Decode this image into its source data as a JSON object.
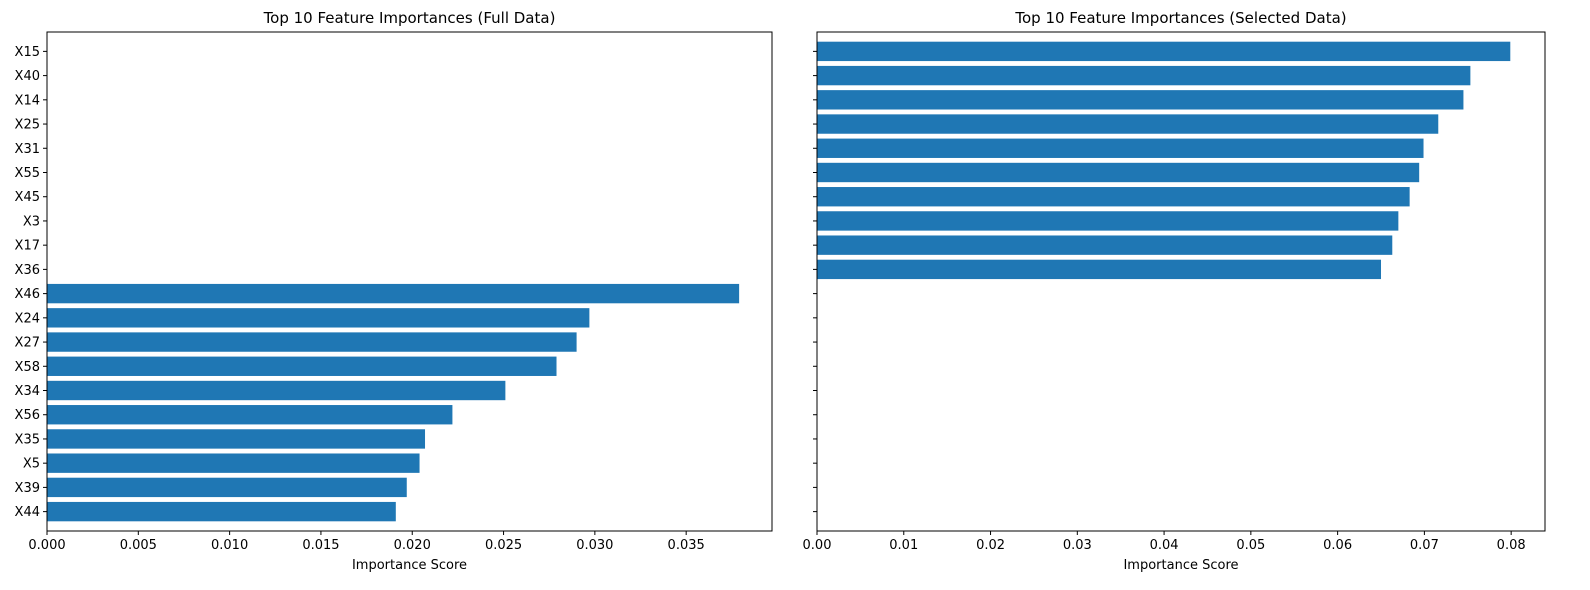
{
  "chart_data": [
    {
      "type": "bar",
      "orientation": "horizontal",
      "title": "Top 10 Feature Importances (Full Data)",
      "xlabel": "Importance Score",
      "ylabel": "",
      "xlim": [
        0,
        0.0397
      ],
      "xticks": [
        0.0,
        0.005,
        0.01,
        0.015,
        0.02,
        0.025,
        0.03,
        0.035
      ],
      "xtick_labels": [
        "0.000",
        "0.005",
        "0.010",
        "0.015",
        "0.020",
        "0.025",
        "0.030",
        "0.035"
      ],
      "categories": [
        "X15",
        "X40",
        "X14",
        "X25",
        "X31",
        "X55",
        "X45",
        "X3",
        "X17",
        "X36",
        "X46",
        "X24",
        "X27",
        "X58",
        "X34",
        "X56",
        "X35",
        "X5",
        "X39",
        "X44"
      ],
      "values": [
        null,
        null,
        null,
        null,
        null,
        null,
        null,
        null,
        null,
        null,
        0.0379,
        0.0297,
        0.029,
        0.0279,
        0.0251,
        0.0222,
        0.0207,
        0.0204,
        0.0197,
        0.0191
      ],
      "color": "#1f77b4",
      "grid": false,
      "legend": "none"
    },
    {
      "type": "bar",
      "orientation": "horizontal",
      "title": "Top 10 Feature Importances (Selected Data)",
      "xlabel": "Importance Score",
      "ylabel": "",
      "xlim": [
        0,
        0.0839
      ],
      "xticks": [
        0.0,
        0.01,
        0.02,
        0.03,
        0.04,
        0.05,
        0.06,
        0.07,
        0.08
      ],
      "xtick_labels": [
        "0.00",
        "0.01",
        "0.02",
        "0.03",
        "0.04",
        "0.05",
        "0.06",
        "0.07",
        "0.08"
      ],
      "categories": [
        "X15",
        "X40",
        "X14",
        "X25",
        "X31",
        "X55",
        "X45",
        "X3",
        "X17",
        "X36",
        "X46",
        "X24",
        "X27",
        "X58",
        "X34",
        "X56",
        "X35",
        "X5",
        "X39",
        "X44"
      ],
      "values": [
        0.0799,
        0.0753,
        0.0745,
        0.0716,
        0.0699,
        0.0694,
        0.0683,
        0.067,
        0.0663,
        0.065,
        null,
        null,
        null,
        null,
        null,
        null,
        null,
        null,
        null,
        null
      ],
      "color": "#1f77b4",
      "grid": false,
      "legend": "none",
      "shared_y": true
    }
  ]
}
